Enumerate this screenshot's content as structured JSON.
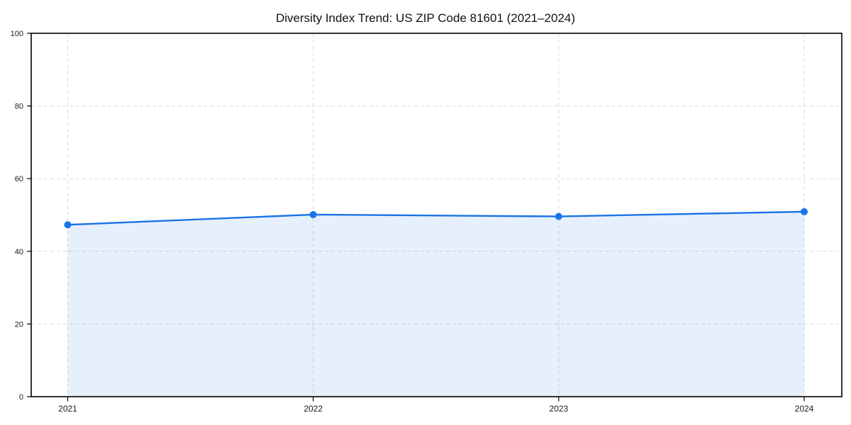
{
  "chart_data": {
    "type": "line",
    "title": "Diversity Index Trend: US ZIP Code 81601 (2021–2024)",
    "categories": [
      "2021",
      "2022",
      "2023",
      "2024"
    ],
    "values": [
      47.3,
      50.1,
      49.6,
      50.9
    ],
    "xlabel": "",
    "ylabel": "",
    "ylim": [
      0,
      100
    ],
    "yticks": [
      0,
      20,
      40,
      60,
      80,
      100
    ],
    "grid": "dashed-both-axes",
    "legend": "none",
    "area_fill": true,
    "markers": "circle",
    "colors": {
      "line": "#1a73e8",
      "marker": "#1a73e8",
      "area_fill_rgba": "rgba(26,115,232,0.11)",
      "grid": "#d9d9d9",
      "axis": "#000000",
      "tick_label": "#1a1a1a",
      "background": "#ffffff"
    }
  }
}
